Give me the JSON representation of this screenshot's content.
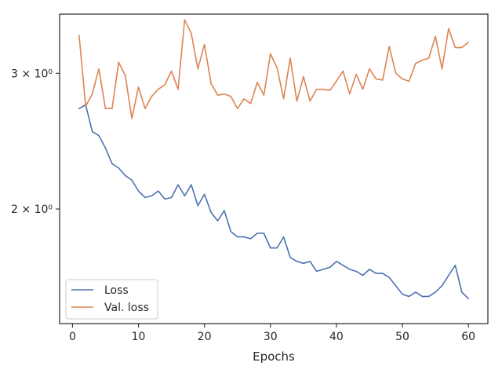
{
  "chart_data": {
    "type": "line",
    "title": "",
    "xlabel": "Epochs",
    "ylabel": "",
    "yscale": "log",
    "xlim": [
      -1.95,
      62.95
    ],
    "ylim": [
      1.42,
      3.58
    ],
    "x_ticks": [
      0,
      10,
      20,
      30,
      40,
      50,
      60
    ],
    "y_ticks": [
      {
        "value": 2,
        "label": "2 × 10⁰"
      },
      {
        "value": 3,
        "label": "3 × 10⁰"
      }
    ],
    "grid": false,
    "legend": {
      "position": "lower-left"
    },
    "x": [
      1,
      2,
      3,
      4,
      5,
      6,
      7,
      8,
      9,
      10,
      11,
      12,
      13,
      14,
      15,
      16,
      17,
      18,
      19,
      20,
      21,
      22,
      23,
      24,
      25,
      26,
      27,
      28,
      29,
      30,
      31,
      32,
      33,
      34,
      35,
      36,
      37,
      38,
      39,
      40,
      41,
      42,
      43,
      44,
      45,
      46,
      47,
      48,
      49,
      50,
      51,
      52,
      53,
      54,
      55,
      56,
      57,
      58,
      59,
      60
    ],
    "series": [
      {
        "name": "Loss",
        "color": "#4c72b0",
        "values": [
          2.7,
          2.73,
          2.52,
          2.49,
          2.4,
          2.29,
          2.26,
          2.21,
          2.18,
          2.11,
          2.07,
          2.08,
          2.11,
          2.06,
          2.07,
          2.15,
          2.08,
          2.15,
          2.02,
          2.09,
          1.98,
          1.93,
          1.99,
          1.87,
          1.84,
          1.84,
          1.83,
          1.86,
          1.86,
          1.78,
          1.78,
          1.84,
          1.73,
          1.71,
          1.7,
          1.71,
          1.66,
          1.67,
          1.68,
          1.71,
          1.69,
          1.67,
          1.66,
          1.64,
          1.67,
          1.65,
          1.65,
          1.63,
          1.59,
          1.55,
          1.54,
          1.56,
          1.54,
          1.54,
          1.56,
          1.59,
          1.64,
          1.69,
          1.56,
          1.53
        ]
      },
      {
        "name": "Val. loss",
        "color": "#dd8452",
        "values": [
          3.36,
          2.72,
          2.82,
          3.04,
          2.7,
          2.7,
          3.1,
          2.98,
          2.62,
          2.88,
          2.7,
          2.8,
          2.86,
          2.9,
          3.02,
          2.86,
          3.52,
          3.38,
          3.04,
          3.27,
          2.91,
          2.81,
          2.82,
          2.8,
          2.7,
          2.78,
          2.74,
          2.92,
          2.81,
          3.18,
          3.05,
          2.78,
          3.14,
          2.76,
          2.97,
          2.76,
          2.86,
          2.86,
          2.85,
          2.93,
          3.02,
          2.82,
          2.99,
          2.86,
          3.04,
          2.95,
          2.94,
          3.25,
          3.0,
          2.95,
          2.93,
          3.09,
          3.12,
          3.14,
          3.35,
          3.04,
          3.43,
          3.24,
          3.24,
          3.29
        ]
      }
    ]
  }
}
